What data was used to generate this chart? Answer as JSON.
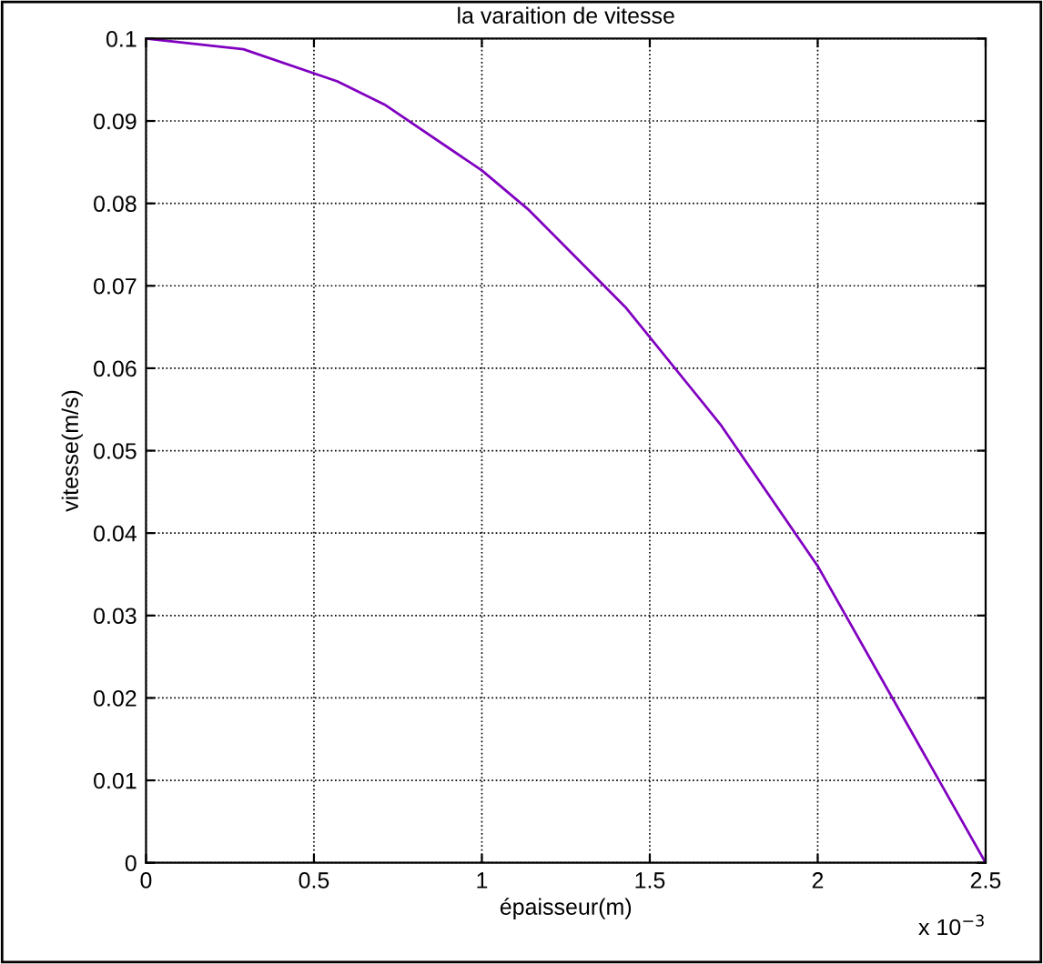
{
  "chart_data": {
    "type": "line",
    "title": "la varaition de vitesse",
    "xlabel": "épaisseur(m)",
    "ylabel": "vitesse(m/s)",
    "x": [
      0,
      0.29,
      0.57,
      0.71,
      1,
      1.14,
      1.43,
      1.71,
      2,
      2.5
    ],
    "series": [
      {
        "color": "#8000c0",
        "values": [
          0.1,
          0.0987,
          0.0948,
          0.092,
          0.084,
          0.0792,
          0.0673,
          0.0532,
          0.036,
          0
        ]
      }
    ],
    "xlim": [
      0,
      2.5
    ],
    "ylim": [
      0,
      0.1
    ],
    "xticks": [
      0,
      0.5,
      1,
      1.5,
      2,
      2.5
    ],
    "yticks": [
      0,
      0.01,
      0.02,
      0.03,
      0.04,
      0.05,
      0.06,
      0.07,
      0.08,
      0.09,
      0.1
    ],
    "grid": true,
    "line_style": "solid",
    "marker": "none",
    "annotations": [
      "x 10$^{−3}$"
    ]
  }
}
